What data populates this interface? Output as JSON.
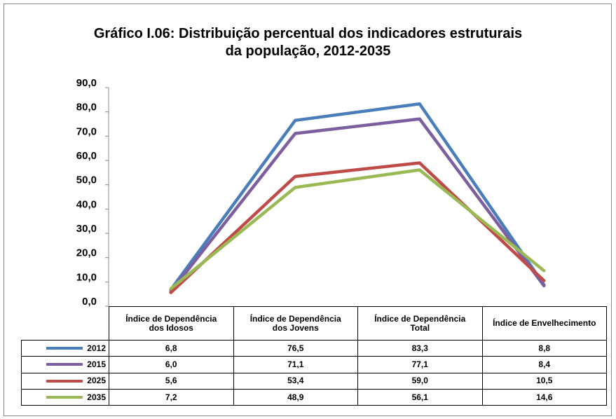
{
  "chart_data": {
    "type": "line",
    "title": "Gráfico I.06: Distribuição percentual dos indicadores estruturais\nda população, 2012-2035",
    "categories": [
      "Índice de Dependência dos Idosos",
      "Índice de Dependência dos Jovens",
      "Índice de Dependência Total",
      "Índice de Envelhecimento"
    ],
    "series": [
      {
        "name": "2012",
        "color": "#4a7ebb",
        "values": [
          6.8,
          76.5,
          83.3,
          8.8
        ],
        "value_labels": [
          "6,8",
          "76,5",
          "83,3",
          "8,8"
        ]
      },
      {
        "name": "2015",
        "color": "#7d5fa0",
        "values": [
          6.0,
          71.1,
          77.1,
          8.4
        ],
        "value_labels": [
          "6,0",
          "71,1",
          "77,1",
          "8,4"
        ]
      },
      {
        "name": "2025",
        "color": "#be4b48",
        "values": [
          5.6,
          53.4,
          59.0,
          10.5
        ],
        "value_labels": [
          "5,6",
          "53,4",
          "59,0",
          "10,5"
        ]
      },
      {
        "name": "2035",
        "color": "#98b954",
        "values": [
          7.2,
          48.9,
          56.1,
          14.6
        ],
        "value_labels": [
          "7,2",
          "48,9",
          "56,1",
          "14,6"
        ]
      }
    ],
    "ylim": [
      0,
      90
    ],
    "yticks": [
      {
        "value": 0,
        "label": "0,0"
      },
      {
        "value": 10,
        "label": "10,0"
      },
      {
        "value": 20,
        "label": "20,0"
      },
      {
        "value": 30,
        "label": "30,0"
      },
      {
        "value": 40,
        "label": "40,0"
      },
      {
        "value": 50,
        "label": "50,0"
      },
      {
        "value": 60,
        "label": "60,0"
      },
      {
        "value": 70,
        "label": "70,0"
      },
      {
        "value": 80,
        "label": "80,0"
      },
      {
        "value": 90,
        "label": "90,0"
      }
    ]
  }
}
